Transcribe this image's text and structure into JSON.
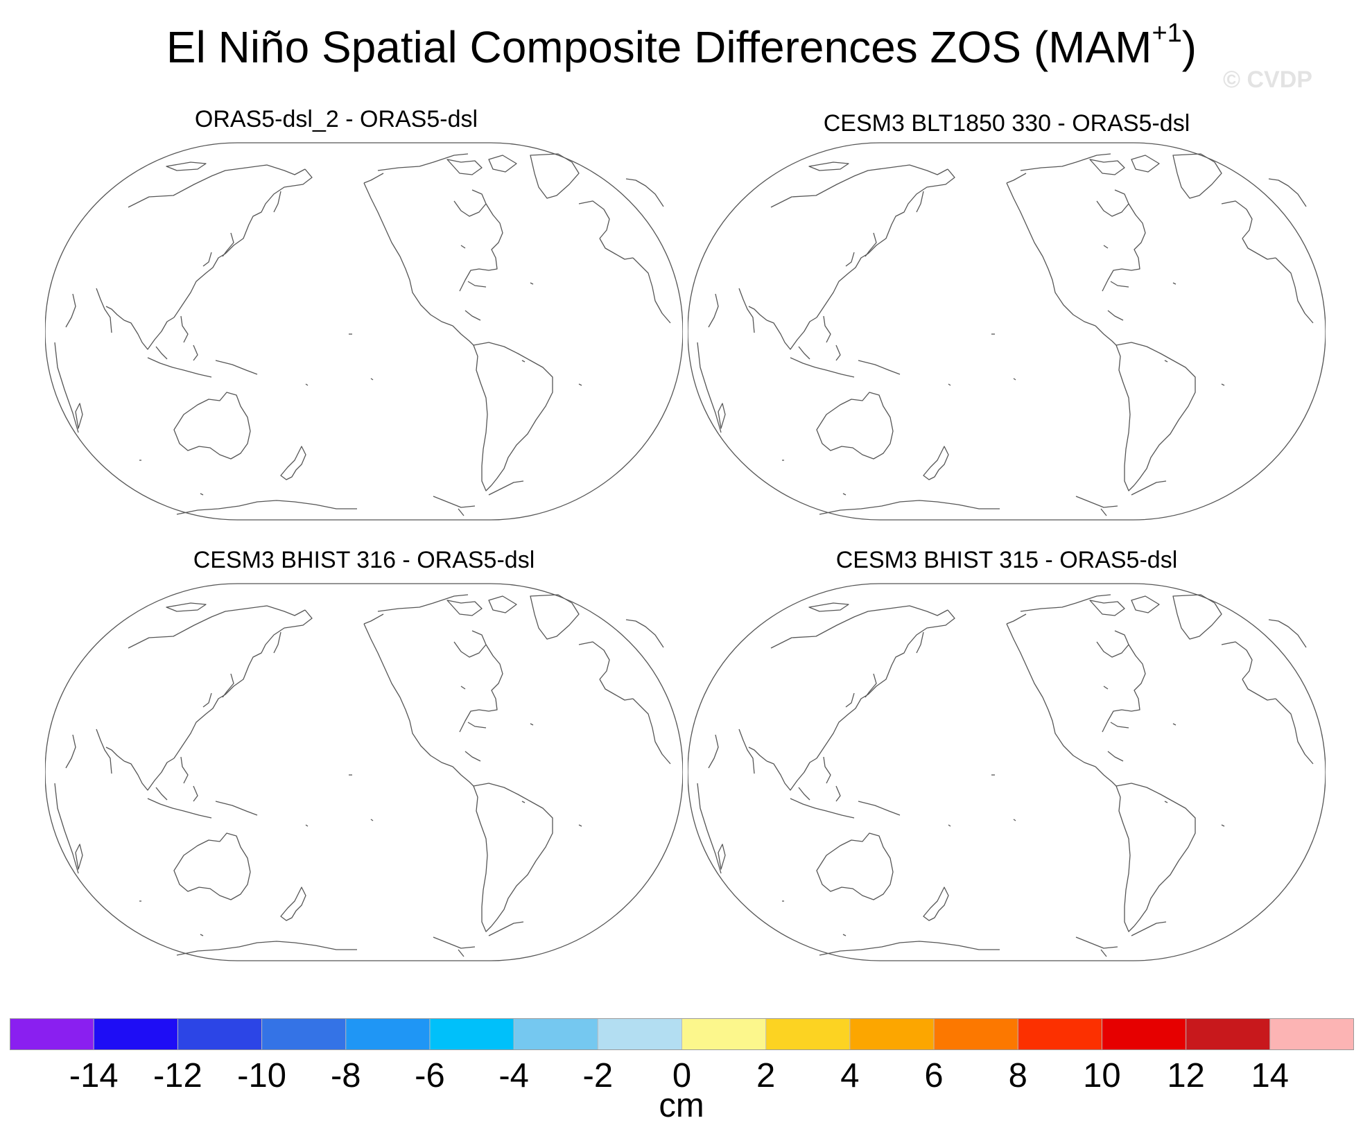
{
  "title": {
    "main": "El Niño Spatial Composite Differences ZOS (MAM",
    "superscript": "+1",
    "close": ")"
  },
  "watermark": "© CVDP",
  "panels": [
    {
      "label": "ORAS5-dsl_2 - ORAS5-dsl"
    },
    {
      "label": "CESM3 BLT1850 330 - ORAS5-dsl"
    },
    {
      "label": "CESM3 BHIST 316 - ORAS5-dsl"
    },
    {
      "label": "CESM3 BHIST 315 - ORAS5-dsl"
    }
  ],
  "colorbar": {
    "unit": "cm",
    "tick_labels": [
      "-14",
      "-12",
      "-10",
      "-8",
      "-6",
      "-4",
      "-2",
      "0",
      "2",
      "4",
      "6",
      "8",
      "10",
      "12",
      "14"
    ],
    "colors": [
      "#8a1ff0",
      "#1e0df5",
      "#2c45e6",
      "#3473e6",
      "#1f96f5",
      "#00c0fa",
      "#75c8f0",
      "#b3def2",
      "#fcf78c",
      "#fcd322",
      "#fca600",
      "#fc7800",
      "#fc3000",
      "#e60000",
      "#c8181c",
      "#fcb4b4"
    ]
  },
  "map": {
    "projection": "Robinson, centered on the Pacific",
    "coastline_color": "#555555",
    "fill": "none (no data shaded)"
  }
}
